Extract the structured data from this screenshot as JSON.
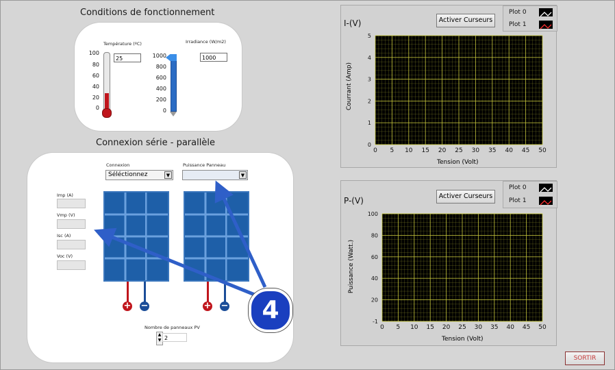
{
  "conditions": {
    "title": "Conditions de fonctionnement",
    "temperature_label": "Température (ºC)",
    "temperature_value": "25",
    "temperature_ticks": [
      "100",
      "80",
      "60",
      "40",
      "20",
      "0"
    ],
    "irradiance_label": "Irradiance (W/m2)",
    "irradiance_value": "1000",
    "irradiance_ticks": [
      "1000",
      "800",
      "600",
      "400",
      "200",
      "0"
    ]
  },
  "connection": {
    "title": "Connexion série - parallèle",
    "connexion_label": "Connexion",
    "connexion_value": "Séléctionnez",
    "puissance_label": "Puissance Panneau",
    "puissance_value": "",
    "indicators": [
      {
        "label": "Imp (A)"
      },
      {
        "label": "Vmp (V)"
      },
      {
        "label": "Isc (A)"
      },
      {
        "label": "Voc (V)"
      }
    ],
    "nb_label": "Nombre de panneaux PV",
    "nb_value": "2"
  },
  "annotation": {
    "badge": "4"
  },
  "graph_iv": {
    "title": "I-(V)",
    "button": "Activer Curseurs",
    "legend": [
      "Plot 0",
      "Plot 1"
    ],
    "ylabel": "Courrant (Amp)",
    "xlabel": "Tension (Volt)",
    "yticks": [
      "5",
      "4",
      "3",
      "2",
      "1",
      "0"
    ],
    "xticks": [
      "0",
      "5",
      "10",
      "15",
      "20",
      "25",
      "30",
      "35",
      "40",
      "45",
      "50"
    ]
  },
  "graph_pv": {
    "title": "P-(V)",
    "button": "Activer Curseurs",
    "legend": [
      "Plot 0",
      "Plot 1"
    ],
    "ylabel": "Puissance (Watt.)",
    "xlabel": "Tension (Volt)",
    "yticks": [
      "100",
      "80",
      "60",
      "40",
      "20",
      "-1"
    ],
    "xticks": [
      "0",
      "5",
      "10",
      "15",
      "20",
      "25",
      "30",
      "35",
      "40",
      "45",
      "50"
    ]
  },
  "sortir": "SORTIR",
  "colors": {
    "plot_bg": "#000000",
    "grid": "#c8c83c",
    "panel": "#1e5fa8",
    "arrow": "#2f5fc8",
    "badge": "#1a3fbf",
    "sortir": "#c83c3c"
  },
  "chart_data": [
    {
      "type": "line",
      "title": "I-(V)",
      "xlabel": "Tension (Volt)",
      "ylabel": "Courrant (Amp)",
      "xlim": [
        0,
        50
      ],
      "ylim": [
        0,
        5
      ],
      "grid": true,
      "legend": "top-right",
      "series": [
        {
          "name": "Plot 0",
          "x": [],
          "y": []
        },
        {
          "name": "Plot 1",
          "x": [],
          "y": []
        }
      ]
    },
    {
      "type": "line",
      "title": "P-(V)",
      "xlabel": "Tension (Volt)",
      "ylabel": "Puissance (Watt.)",
      "xlim": [
        0,
        50
      ],
      "ylim": [
        -1,
        100
      ],
      "grid": true,
      "legend": "top-right",
      "series": [
        {
          "name": "Plot 0",
          "x": [],
          "y": []
        },
        {
          "name": "Plot 1",
          "x": [],
          "y": []
        }
      ]
    }
  ]
}
